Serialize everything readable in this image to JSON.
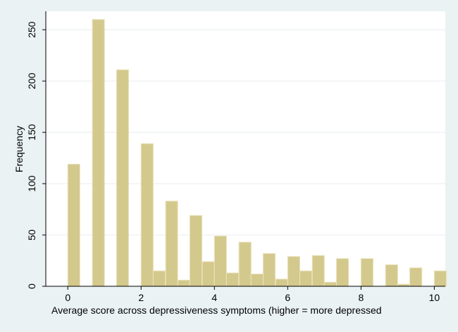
{
  "chart_data": {
    "type": "bar",
    "subtype": "histogram",
    "title": "",
    "xlabel": "Average score across depressiveness symptoms (higher = more depressed",
    "ylabel": "Frequency",
    "xlim": [
      -0.6,
      10.3
    ],
    "ylim": [
      0,
      268
    ],
    "x_ticks": [
      0,
      2,
      4,
      6,
      8,
      10
    ],
    "y_ticks": [
      0,
      50,
      100,
      150,
      200,
      250
    ],
    "grid": true,
    "bin_width": 0.33,
    "bins": [
      {
        "start": 0.0,
        "value": 119
      },
      {
        "start": 0.67,
        "value": 260
      },
      {
        "start": 1.33,
        "value": 211
      },
      {
        "start": 2.0,
        "value": 139
      },
      {
        "start": 2.33,
        "value": 15
      },
      {
        "start": 2.67,
        "value": 83
      },
      {
        "start": 3.0,
        "value": 6
      },
      {
        "start": 3.33,
        "value": 69
      },
      {
        "start": 3.67,
        "value": 24
      },
      {
        "start": 4.0,
        "value": 49
      },
      {
        "start": 4.33,
        "value": 13
      },
      {
        "start": 4.67,
        "value": 43
      },
      {
        "start": 5.0,
        "value": 12
      },
      {
        "start": 5.33,
        "value": 32
      },
      {
        "start": 5.67,
        "value": 7
      },
      {
        "start": 6.0,
        "value": 29
      },
      {
        "start": 6.33,
        "value": 15
      },
      {
        "start": 6.67,
        "value": 30
      },
      {
        "start": 7.0,
        "value": 4
      },
      {
        "start": 7.33,
        "value": 27
      },
      {
        "start": 8.0,
        "value": 27
      },
      {
        "start": 8.67,
        "value": 21
      },
      {
        "start": 9.0,
        "value": 2
      },
      {
        "start": 9.33,
        "value": 18
      },
      {
        "start": 10.0,
        "value": 15
      }
    ],
    "colors": {
      "background": "#eaf2f3",
      "plot_background": "#ffffff",
      "bar_fill": "#d4c98d",
      "bar_stroke": "#ebe3bc",
      "grid": "#e8eeef",
      "axis": "#000000"
    }
  }
}
